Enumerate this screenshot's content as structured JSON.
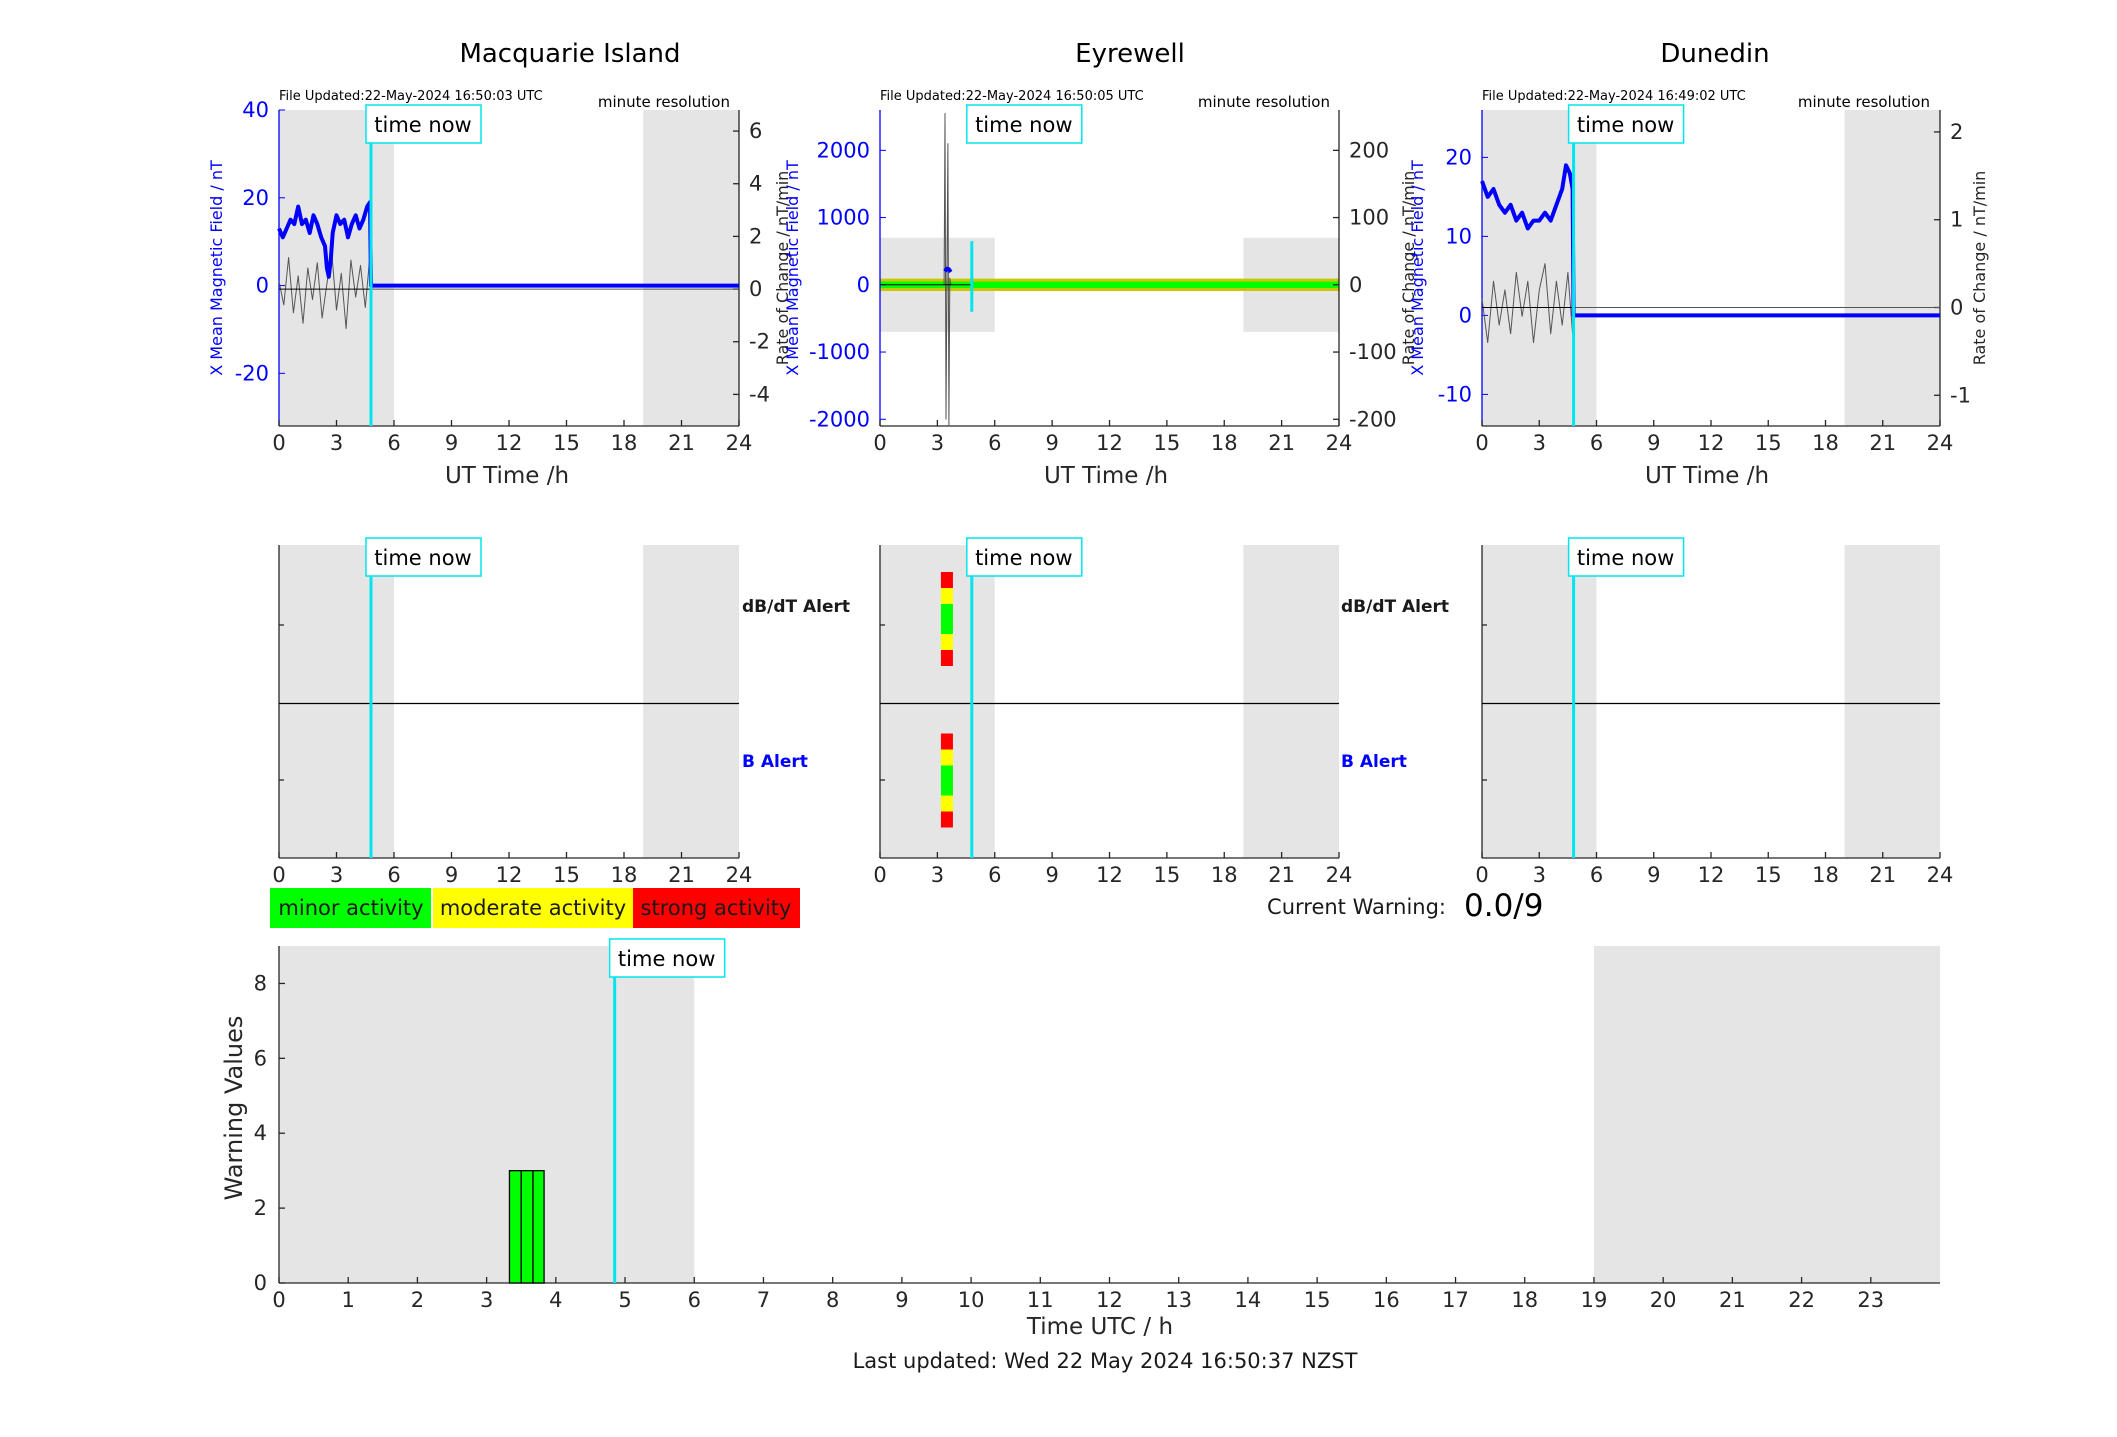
{
  "figure": {
    "last_updated": "Last updated: Wed 22 May 2024 16:50:37 NZST",
    "current_warning_label": "Current Warning:",
    "current_warning_value": "0.0/9",
    "time_now_label": "time now",
    "colors": {
      "minor": "#00ff00",
      "moderate": "#ffff00",
      "strong": "#ff0000",
      "time_now": "#00e5ee",
      "night_shade": "#e5e5e5",
      "field_line": "#0000ff"
    }
  },
  "legend": {
    "minor": "minor activity",
    "moderate": "moderate activity",
    "strong": "strong activity"
  },
  "stations": [
    {
      "name": "Macquarie Island",
      "file_updated": "File Updated:22-May-2024 16:50:03 UTC",
      "resolution": "minute resolution",
      "ylabel_left": "X Mean Magnetic Field / nT",
      "ylabel_right": "Rate of Change / nT/min",
      "xlabel": "UT Time /h",
      "alert_dbdt_label": "dB/dT Alert",
      "alert_b_label": "B Alert"
    },
    {
      "name": "Eyrewell",
      "file_updated": "File Updated:22-May-2024 16:50:05 UTC",
      "resolution": "minute resolution",
      "ylabel_left": "X Mean Magnetic Field / nT",
      "ylabel_right": "Rate of Change / nT/min",
      "xlabel": "UT Time /h",
      "alert_dbdt_label": "dB/dT Alert",
      "alert_b_label": "B Alert"
    },
    {
      "name": "Dunedin",
      "file_updated": "File Updated:22-May-2024 16:49:02 UTC",
      "resolution": "minute resolution",
      "ylabel_left": "X Mean Magnetic Field / nT",
      "ylabel_right": "Rate of Change / nT/min",
      "xlabel": "UT Time /h",
      "alert_dbdt_label": "",
      "alert_b_label": ""
    }
  ],
  "chart_data": [
    {
      "type": "line",
      "station": "Macquarie Island",
      "xlim": [
        0,
        24
      ],
      "xticks": [
        0,
        3,
        6,
        9,
        12,
        15,
        18,
        21,
        24
      ],
      "ylim_left": [
        -32,
        40
      ],
      "yticks_left": [
        -20,
        0,
        20,
        40
      ],
      "ylim_right": [
        -5.2,
        6.8
      ],
      "yticks_right": [
        -4,
        -2,
        0,
        2,
        4,
        6
      ],
      "night_bands": [
        [
          0,
          6
        ],
        [
          19,
          24
        ]
      ],
      "time_now": 4.8,
      "series": [
        {
          "axis": "left",
          "color": "#0000ff",
          "x": [
            0,
            0.2,
            0.4,
            0.6,
            0.8,
            1.0,
            1.2,
            1.4,
            1.6,
            1.8,
            2.0,
            2.2,
            2.4,
            2.5,
            2.6,
            2.7,
            2.8,
            3.0,
            3.2,
            3.4,
            3.6,
            3.8,
            4.0,
            4.2,
            4.4,
            4.6,
            4.75,
            4.8,
            5.0,
            24
          ],
          "y": [
            13,
            11,
            13,
            15,
            14,
            18,
            14,
            15,
            12,
            16,
            14,
            11,
            9,
            4,
            2,
            6,
            12,
            16,
            14,
            15,
            11,
            14,
            16,
            13,
            15,
            18,
            19,
            0,
            0,
            0
          ]
        },
        {
          "axis": "right",
          "color": "#555555",
          "x": [
            0,
            0.25,
            0.5,
            0.75,
            1.0,
            1.25,
            1.5,
            1.75,
            2.0,
            2.25,
            2.5,
            2.75,
            3.0,
            3.25,
            3.5,
            3.75,
            4.0,
            4.25,
            4.5,
            4.75,
            4.8,
            24
          ],
          "y": [
            0.3,
            -0.6,
            1.2,
            -0.9,
            0.5,
            -1.3,
            0.8,
            -0.4,
            1.0,
            -1.1,
            0.2,
            1.4,
            -0.8,
            0.6,
            -1.5,
            1.1,
            -0.3,
            0.9,
            -0.7,
            1.3,
            0,
            0
          ]
        }
      ]
    },
    {
      "type": "line",
      "station": "Eyrewell",
      "xlim": [
        0,
        24
      ],
      "xticks": [
        0,
        3,
        6,
        9,
        12,
        15,
        18,
        21,
        24
      ],
      "ylim_left": [
        -2100,
        2600
      ],
      "yticks_left": [
        -2000,
        -1000,
        0,
        1000,
        2000
      ],
      "ylim_right": [
        -210,
        260
      ],
      "yticks_right": [
        -200,
        -100,
        0,
        100,
        200
      ],
      "night_bands": [
        [
          0,
          6
        ],
        [
          19,
          24
        ]
      ],
      "night_band_ylim_left": [
        -700,
        700
      ],
      "activity_band_ylim_left": [
        -70,
        70
      ],
      "time_now": 4.8,
      "series": [
        {
          "axis": "left",
          "color": "#0000ff",
          "x": [
            3.4,
            3.5,
            3.6,
            3.7
          ],
          "y": [
            200,
            240,
            230,
            190
          ]
        },
        {
          "axis": "right",
          "color": "#555555",
          "x": [
            3.35,
            3.4,
            3.45,
            3.5,
            3.55,
            3.6,
            3.65,
            3.7
          ],
          "y": [
            0,
            255,
            -200,
            0,
            210,
            -210,
            10,
            0
          ]
        }
      ]
    },
    {
      "type": "line",
      "station": "Dunedin",
      "xlim": [
        0,
        24
      ],
      "xticks": [
        0,
        3,
        6,
        9,
        12,
        15,
        18,
        21,
        24
      ],
      "ylim_left": [
        -14,
        26
      ],
      "yticks_left": [
        -10,
        0,
        10,
        20
      ],
      "ylim_right": [
        -1.35,
        2.25
      ],
      "yticks_right": [
        -1,
        0,
        1,
        2
      ],
      "night_bands": [
        [
          0,
          6
        ],
        [
          19,
          24
        ]
      ],
      "time_now": 4.8,
      "series": [
        {
          "axis": "left",
          "color": "#0000ff",
          "x": [
            0,
            0.3,
            0.6,
            0.9,
            1.2,
            1.5,
            1.8,
            2.1,
            2.4,
            2.7,
            3.0,
            3.3,
            3.6,
            3.9,
            4.2,
            4.4,
            4.6,
            4.75,
            4.8,
            5.0,
            24
          ],
          "y": [
            17,
            15,
            16,
            14,
            13,
            14,
            12,
            13,
            11,
            12,
            12,
            13,
            12,
            14,
            16,
            19,
            18,
            16,
            0,
            0,
            0
          ]
        },
        {
          "axis": "right",
          "color": "#555555",
          "x": [
            0,
            0.3,
            0.6,
            0.9,
            1.2,
            1.5,
            1.8,
            2.1,
            2.4,
            2.7,
            3.0,
            3.3,
            3.6,
            3.9,
            4.2,
            4.5,
            4.75,
            4.8,
            24
          ],
          "y": [
            0.1,
            -0.4,
            0.3,
            -0.2,
            0.2,
            -0.3,
            0.4,
            -0.1,
            0.3,
            -0.4,
            0.2,
            0.5,
            -0.3,
            0.3,
            -0.2,
            0.4,
            -0.3,
            0,
            0
          ]
        }
      ]
    },
    {
      "type": "bar",
      "panel": "alerts",
      "xlim": [
        0,
        24
      ],
      "xticks": [
        0,
        3,
        6,
        9,
        12,
        15,
        18,
        21,
        24
      ],
      "night_bands": [
        [
          0,
          6
        ],
        [
          19,
          24
        ]
      ],
      "time_now": 4.8,
      "alerts": [
        {
          "station": "Macquarie Island",
          "x": [],
          "levels": []
        },
        {
          "station": "Eyrewell",
          "x": [
            3.5
          ],
          "levels": [
            "red",
            "yellow",
            "green",
            "yellow",
            "red"
          ]
        },
        {
          "station": "Dunedin",
          "x": [],
          "levels": []
        }
      ]
    },
    {
      "type": "bar",
      "title": "",
      "xlabel": "Time UTC / h",
      "ylabel": "Warning Values",
      "xlim": [
        0,
        24
      ],
      "ylim": [
        0,
        9
      ],
      "xticks": [
        0,
        1,
        2,
        3,
        4,
        5,
        6,
        7,
        8,
        9,
        10,
        11,
        12,
        13,
        14,
        15,
        16,
        17,
        18,
        19,
        20,
        21,
        22,
        23
      ],
      "yticks": [
        0,
        2,
        4,
        6,
        8
      ],
      "night_bands": [
        [
          0,
          6
        ],
        [
          19,
          24
        ]
      ],
      "time_now": 4.85,
      "bars": [
        {
          "x0": 3.33,
          "x1": 3.5,
          "value": 3,
          "color": "#00ff00"
        },
        {
          "x0": 3.5,
          "x1": 3.67,
          "value": 3,
          "color": "#00ff00"
        },
        {
          "x0": 3.67,
          "x1": 3.83,
          "value": 3,
          "color": "#00ff00"
        }
      ]
    }
  ]
}
